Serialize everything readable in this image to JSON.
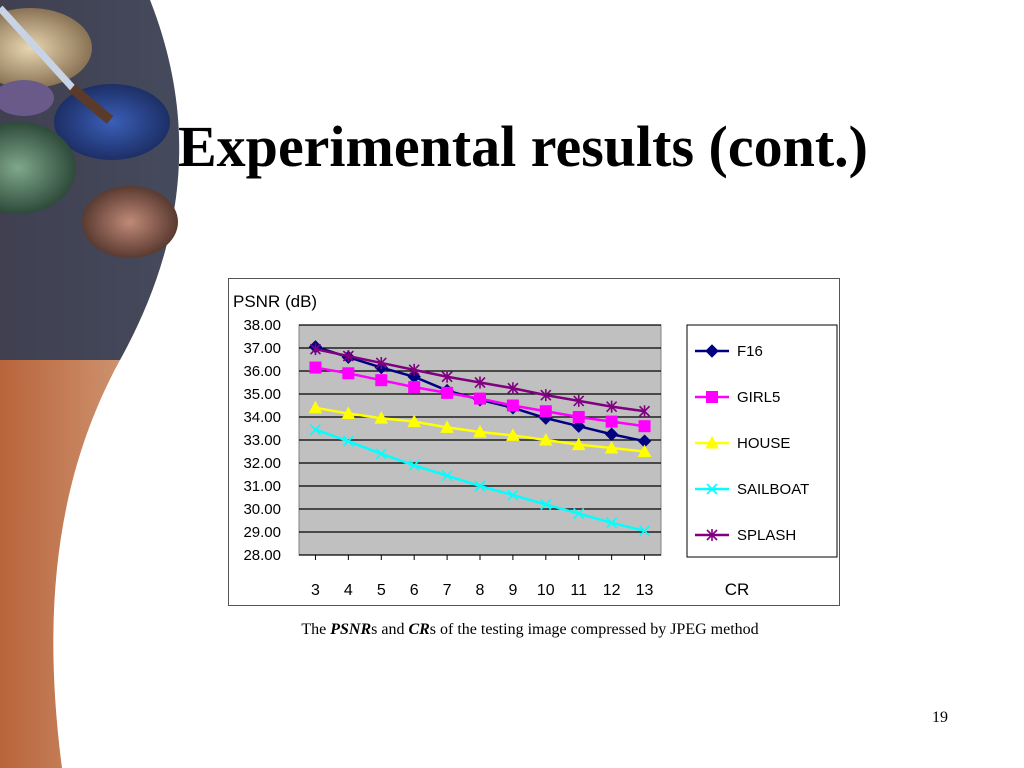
{
  "slide": {
    "title": "Experimental results (cont.)",
    "caption": {
      "prefix": "The ",
      "term1": "PSNR",
      "mid1": "s and ",
      "term2": "CR",
      "suffix": "s of the testing image compressed by JPEG method"
    },
    "page_number": "19"
  },
  "chart_data": {
    "type": "line",
    "ylabel": "PSNR (dB)",
    "xlabel": "CR",
    "ylim": [
      28,
      38
    ],
    "yticks": [
      "38.00",
      "37.00",
      "36.00",
      "35.00",
      "34.00",
      "33.00",
      "32.00",
      "31.00",
      "30.00",
      "29.00",
      "28.00"
    ],
    "categories": [
      "3",
      "4",
      "5",
      "6",
      "7",
      "8",
      "9",
      "10",
      "11",
      "12",
      "13"
    ],
    "grid": true,
    "legend_position": "right",
    "plot_background": "#c0c0c0",
    "series": [
      {
        "name": "F16",
        "color": "#000080",
        "marker": "diamond",
        "values": [
          37.05,
          36.6,
          36.15,
          35.75,
          35.15,
          34.75,
          34.4,
          33.95,
          33.6,
          33.25,
          32.95
        ]
      },
      {
        "name": "GIRL5",
        "color": "#ff00ff",
        "marker": "square",
        "values": [
          36.15,
          35.9,
          35.6,
          35.3,
          35.05,
          34.8,
          34.5,
          34.25,
          34.0,
          33.8,
          33.6
        ]
      },
      {
        "name": "HOUSE",
        "color": "#ffff00",
        "marker": "triangle",
        "values": [
          34.4,
          34.15,
          33.95,
          33.8,
          33.55,
          33.35,
          33.2,
          33.0,
          32.8,
          32.65,
          32.5
        ]
      },
      {
        "name": "SAILBOAT",
        "color": "#00ffff",
        "marker": "x",
        "values": [
          33.45,
          32.95,
          32.4,
          31.9,
          31.45,
          31.0,
          30.6,
          30.2,
          29.8,
          29.4,
          29.05
        ]
      },
      {
        "name": "SPLASH",
        "color": "#800080",
        "marker": "star",
        "values": [
          36.95,
          36.65,
          36.35,
          36.05,
          35.75,
          35.5,
          35.25,
          34.95,
          34.7,
          34.45,
          34.25
        ]
      }
    ]
  }
}
